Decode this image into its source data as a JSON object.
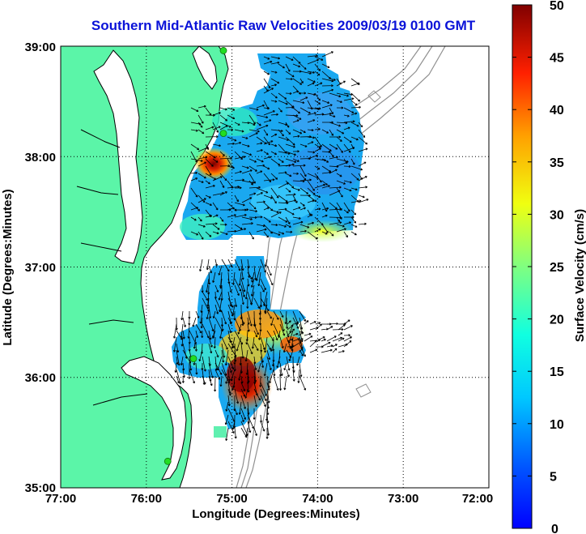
{
  "title": "Southern Mid-Atlantic Raw Velocities 2009/03/19 0100 GMT",
  "x_axis_label": "Longitude (Degrees:Minutes)",
  "y_axis_label": "Latitude (Degrees:Minutes)",
  "x_ticks": [
    "77:00",
    "76:00",
    "75:00",
    "74:00",
    "73:00",
    "72:00"
  ],
  "y_ticks": [
    "39:00",
    "38:00",
    "37:00",
    "36:00",
    "35:00"
  ],
  "colorbar": {
    "label": "Surface Velocity (cm/s)",
    "ticks": [
      "50",
      "45",
      "40",
      "35",
      "30",
      "25",
      "20",
      "15",
      "10",
      "5",
      "0"
    ],
    "range": [
      0,
      50
    ],
    "colormap": "jet"
  },
  "colors": {
    "title": "#0a12d8",
    "land": "#5bf5a8",
    "coastline": "#000000",
    "bathymetry": "#909090",
    "station": "#22dd22"
  },
  "grid": "dotted",
  "map_extent": {
    "lon": [
      -77,
      -72
    ],
    "lat": [
      35,
      39
    ]
  },
  "stations": [
    {
      "lon": -75.1,
      "lat": 38.96
    },
    {
      "lon": -75.1,
      "lat": 38.21
    },
    {
      "lon": -75.45,
      "lat": 36.17
    },
    {
      "lon": -75.75,
      "lat": 35.24
    }
  ]
}
